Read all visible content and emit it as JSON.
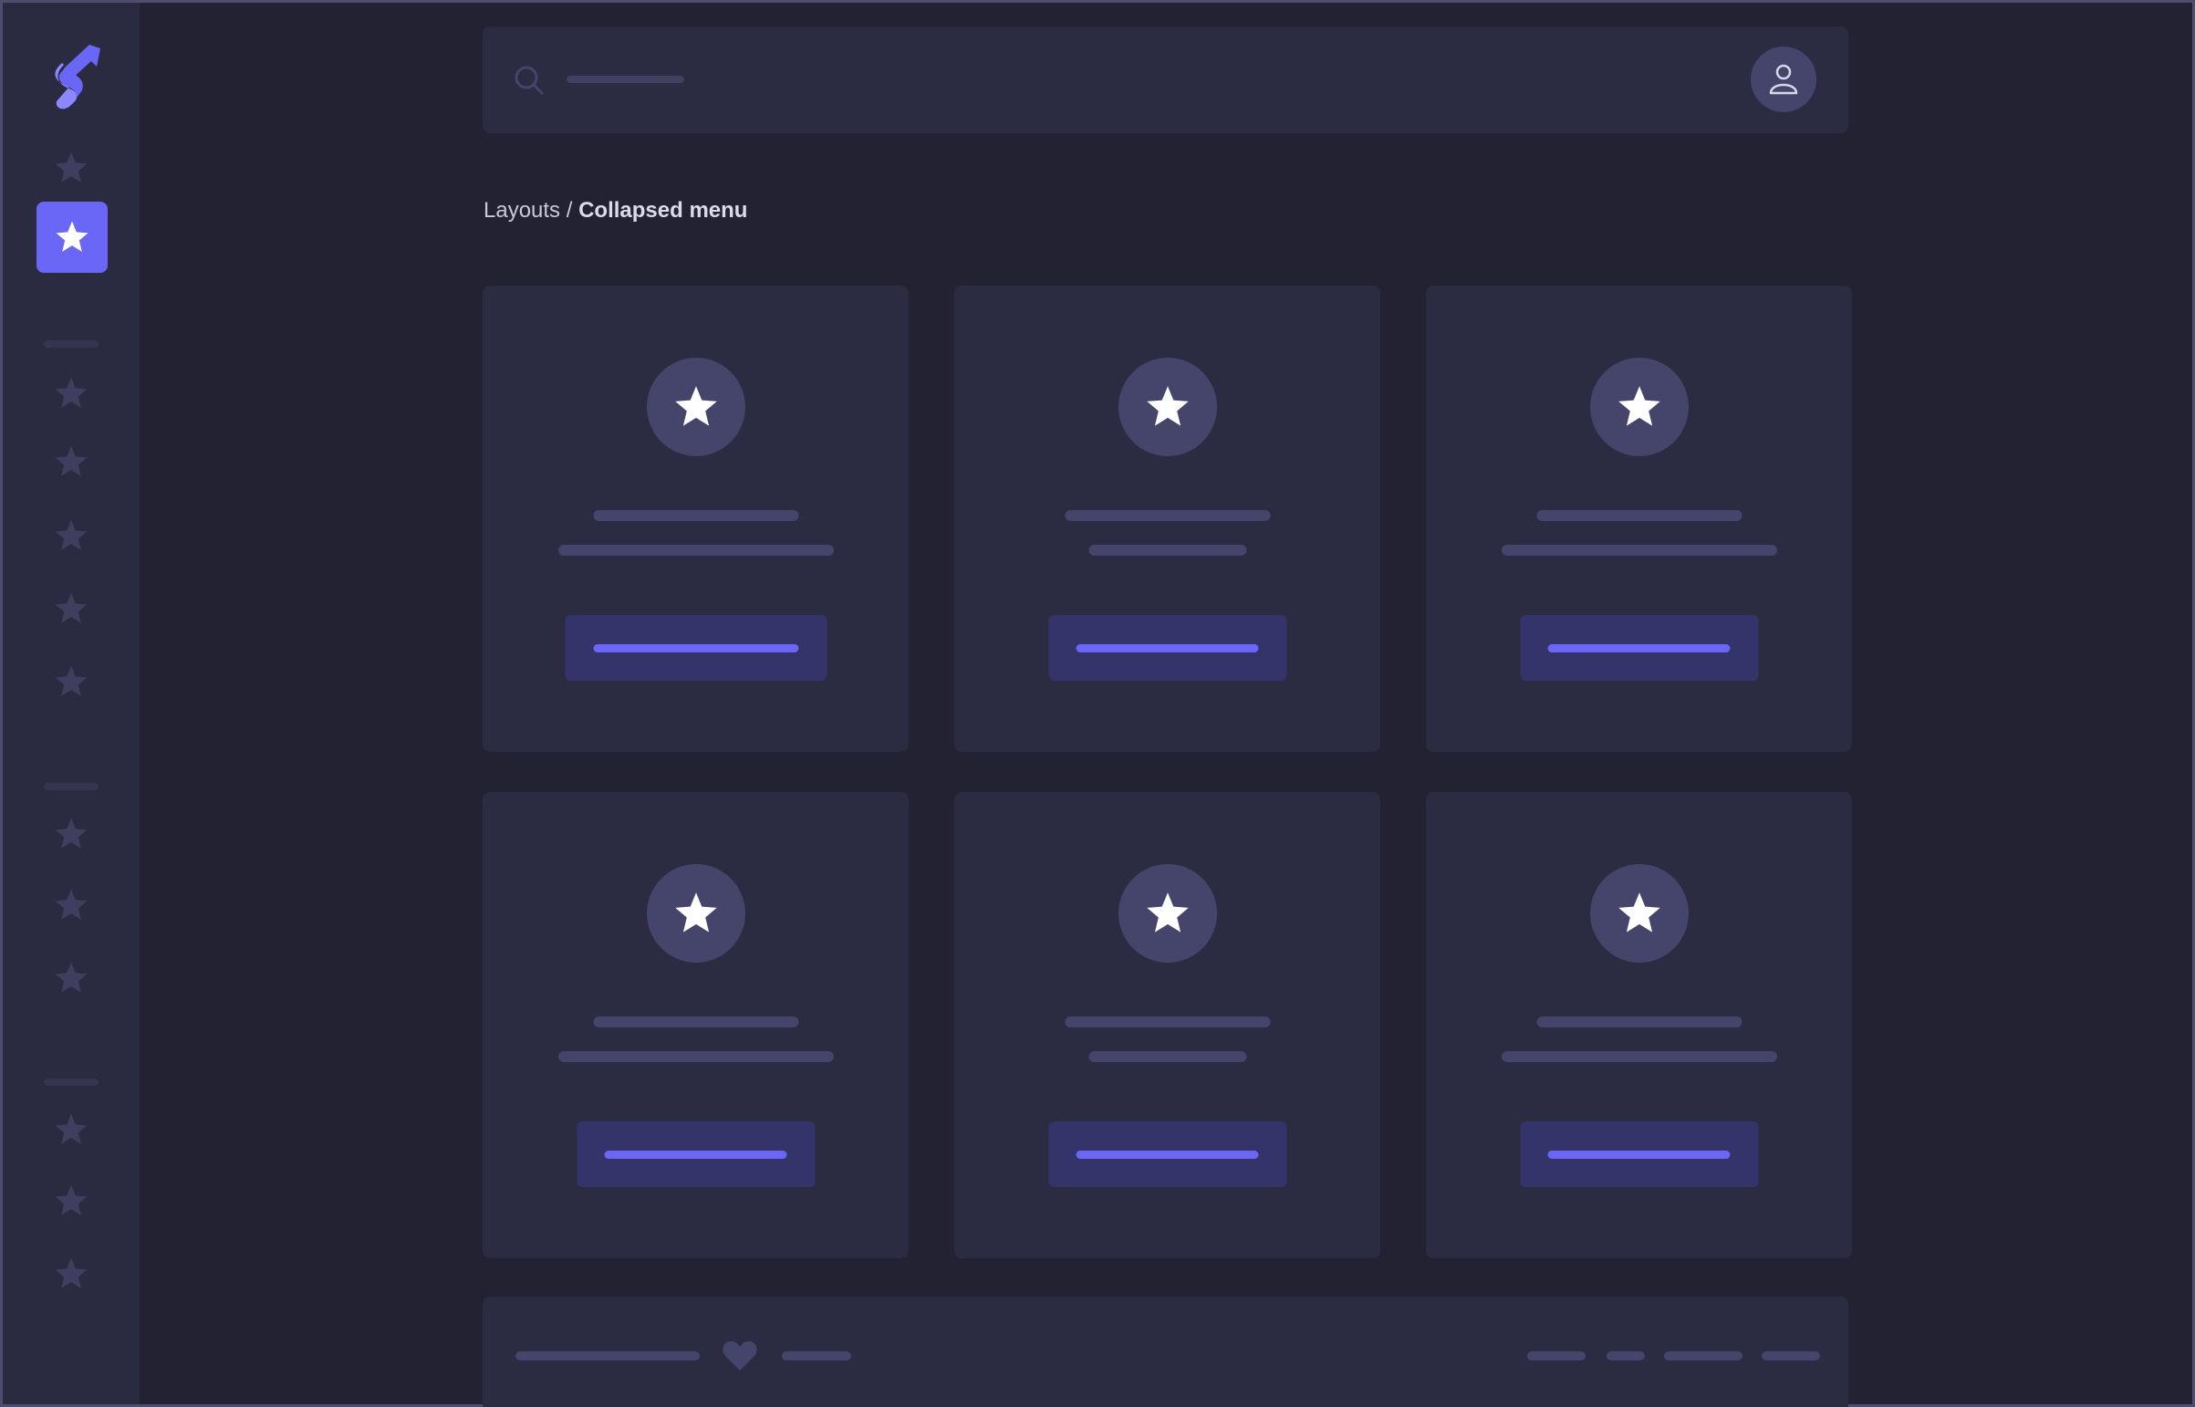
{
  "colors": {
    "accent": "#6a67f6",
    "sidebar_bg": "#2a2a40",
    "page_bg": "#232233",
    "card_bg": "#2b2b41",
    "placeholder": "#45446a"
  },
  "sidebar": {
    "logo": "brand-logo",
    "active_index": 1,
    "items": [
      {
        "icon": "star-icon"
      },
      {
        "icon": "star-icon",
        "active": true
      },
      {
        "icon": "star-icon"
      },
      {
        "icon": "star-icon"
      },
      {
        "icon": "star-icon"
      },
      {
        "icon": "star-icon"
      },
      {
        "icon": "star-icon"
      },
      {
        "icon": "star-icon"
      },
      {
        "icon": "star-icon"
      },
      {
        "icon": "star-icon"
      },
      {
        "icon": "star-icon"
      },
      {
        "icon": "star-icon"
      },
      {
        "icon": "star-icon"
      }
    ]
  },
  "topbar": {
    "search_icon": "search-icon",
    "avatar_icon": "user-icon"
  },
  "breadcrumb": {
    "parent": "Layouts",
    "separator": " / ",
    "current": "Collapsed menu"
  },
  "cards": [
    {
      "icon": "star-icon",
      "second_line": "long",
      "button": "wide"
    },
    {
      "icon": "star-icon",
      "second_line": "short",
      "button": "normal"
    },
    {
      "icon": "star-icon",
      "second_line": "long",
      "button": "normal"
    },
    {
      "icon": "star-icon",
      "second_line": "long",
      "button": "normal"
    },
    {
      "icon": "star-icon",
      "second_line": "short",
      "button": "normal"
    },
    {
      "icon": "star-icon",
      "second_line": "long",
      "button": "normal"
    }
  ],
  "footer": {
    "icon": "heart-icon"
  }
}
